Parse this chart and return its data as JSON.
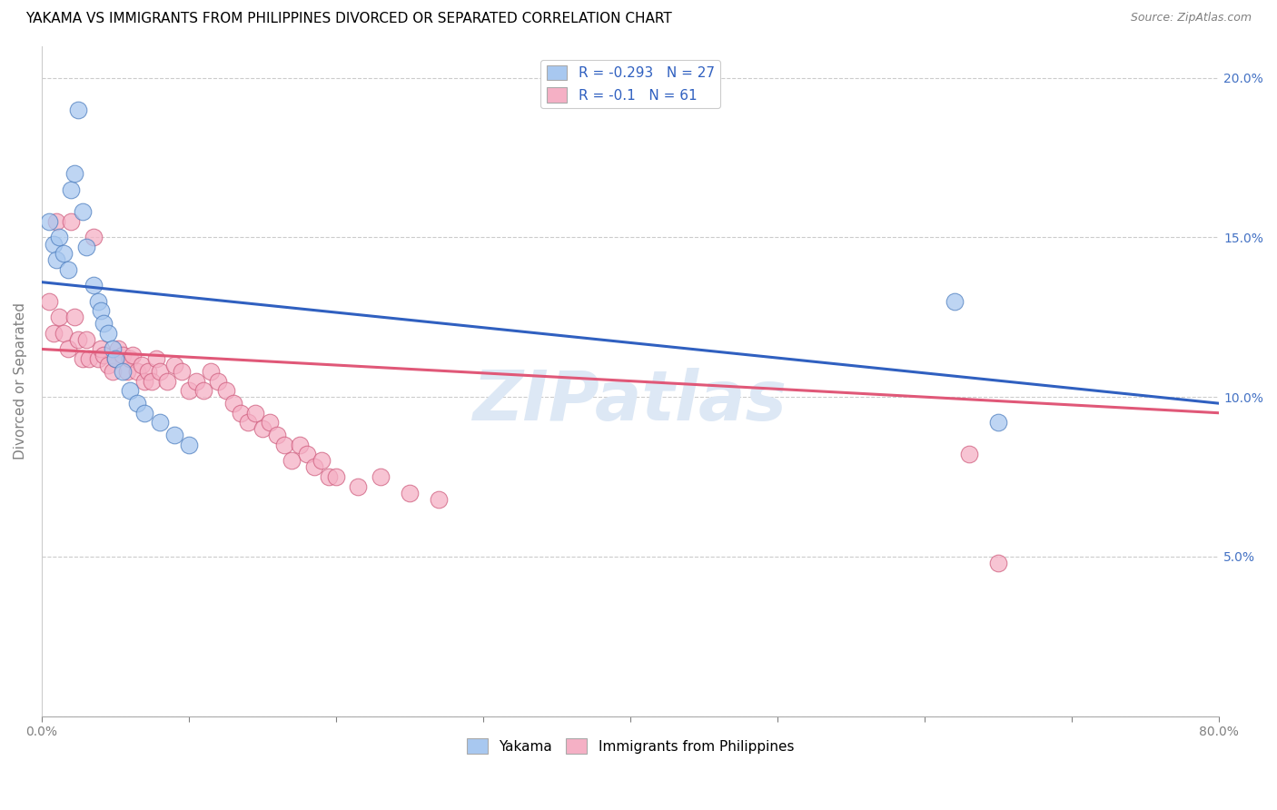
{
  "title": "YAKAMA VS IMMIGRANTS FROM PHILIPPINES DIVORCED OR SEPARATED CORRELATION CHART",
  "source_text": "Source: ZipAtlas.com",
  "ylabel": "Divorced or Separated",
  "legend_label1": "Yakama",
  "legend_label2": "Immigrants from Philippines",
  "R1": -0.293,
  "N1": 27,
  "R2": -0.1,
  "N2": 61,
  "xlim": [
    0.0,
    0.8
  ],
  "ylim": [
    0.0,
    0.21
  ],
  "xtick_vals": [
    0.0,
    0.1,
    0.2,
    0.3,
    0.4,
    0.5,
    0.6,
    0.7,
    0.8
  ],
  "ytick_vals": [
    0.0,
    0.05,
    0.1,
    0.15,
    0.2
  ],
  "ytick_labels_right": [
    "",
    "5.0%",
    "10.0%",
    "15.0%",
    "20.0%"
  ],
  "color_blue": "#a8c8f0",
  "color_pink": "#f5b0c5",
  "edge_blue": "#5080c0",
  "edge_pink": "#d06080",
  "trend_color_blue": "#3060c0",
  "trend_color_pink": "#e05878",
  "watermark": "ZIPatlas",
  "watermark_color": "#dde8f5",
  "background_color": "#ffffff",
  "grid_color": "#cccccc",
  "title_fontsize": 11,
  "axis_label_fontsize": 11,
  "tick_fontsize": 10,
  "right_tick_color": "#4472c4",
  "yakama_x": [
    0.005,
    0.008,
    0.01,
    0.012,
    0.015,
    0.018,
    0.02,
    0.022,
    0.025,
    0.028,
    0.03,
    0.035,
    0.038,
    0.04,
    0.042,
    0.045,
    0.048,
    0.05,
    0.055,
    0.06,
    0.065,
    0.07,
    0.08,
    0.09,
    0.1,
    0.62,
    0.65
  ],
  "yakama_y": [
    0.155,
    0.148,
    0.143,
    0.15,
    0.145,
    0.14,
    0.165,
    0.17,
    0.19,
    0.158,
    0.147,
    0.135,
    0.13,
    0.127,
    0.123,
    0.12,
    0.115,
    0.112,
    0.108,
    0.102,
    0.098,
    0.095,
    0.092,
    0.088,
    0.085,
    0.13,
    0.092
  ],
  "phil_x": [
    0.005,
    0.008,
    0.01,
    0.012,
    0.015,
    0.018,
    0.02,
    0.022,
    0.025,
    0.028,
    0.03,
    0.032,
    0.035,
    0.038,
    0.04,
    0.042,
    0.045,
    0.048,
    0.05,
    0.052,
    0.055,
    0.058,
    0.06,
    0.062,
    0.065,
    0.068,
    0.07,
    0.072,
    0.075,
    0.078,
    0.08,
    0.085,
    0.09,
    0.095,
    0.1,
    0.105,
    0.11,
    0.115,
    0.12,
    0.125,
    0.13,
    0.135,
    0.14,
    0.145,
    0.15,
    0.155,
    0.16,
    0.165,
    0.17,
    0.175,
    0.18,
    0.185,
    0.19,
    0.195,
    0.2,
    0.215,
    0.23,
    0.25,
    0.27,
    0.63,
    0.65
  ],
  "phil_y": [
    0.13,
    0.12,
    0.155,
    0.125,
    0.12,
    0.115,
    0.155,
    0.125,
    0.118,
    0.112,
    0.118,
    0.112,
    0.15,
    0.112,
    0.115,
    0.113,
    0.11,
    0.108,
    0.112,
    0.115,
    0.113,
    0.108,
    0.112,
    0.113,
    0.108,
    0.11,
    0.105,
    0.108,
    0.105,
    0.112,
    0.108,
    0.105,
    0.11,
    0.108,
    0.102,
    0.105,
    0.102,
    0.108,
    0.105,
    0.102,
    0.098,
    0.095,
    0.092,
    0.095,
    0.09,
    0.092,
    0.088,
    0.085,
    0.08,
    0.085,
    0.082,
    0.078,
    0.08,
    0.075,
    0.075,
    0.072,
    0.075,
    0.07,
    0.068,
    0.082,
    0.048
  ],
  "trend_blue_x0": 0.0,
  "trend_blue_y0": 0.136,
  "trend_blue_x1": 0.8,
  "trend_blue_y1": 0.098,
  "trend_pink_x0": 0.0,
  "trend_pink_y0": 0.115,
  "trend_pink_x1": 0.8,
  "trend_pink_y1": 0.095
}
